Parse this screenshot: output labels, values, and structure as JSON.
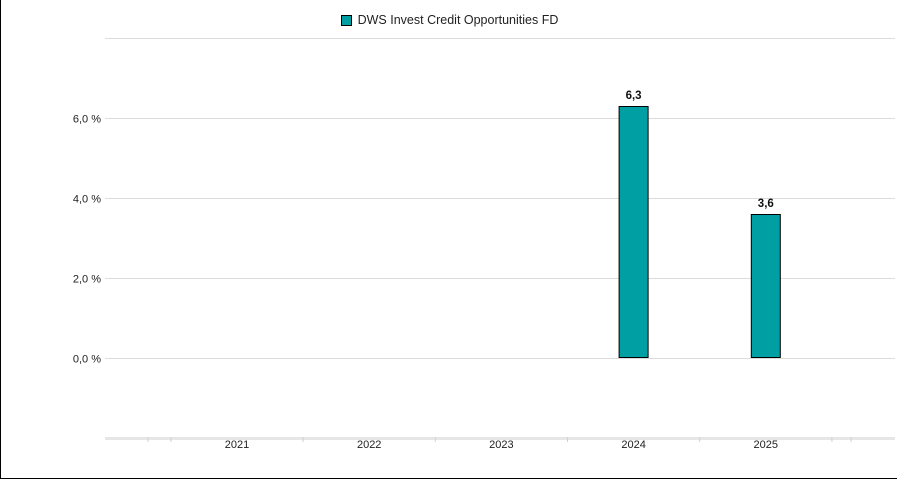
{
  "chart_data": {
    "type": "bar",
    "categories": [
      "2021",
      "2022",
      "2023",
      "2024",
      "2025"
    ],
    "series": [
      {
        "name": "DWS Invest Credit Opportunities FD",
        "values": [
          null,
          null,
          null,
          6.3,
          3.6
        ],
        "data_labels": [
          "",
          "",
          "",
          "6,3",
          "3,6"
        ]
      }
    ],
    "yticks": [
      0,
      2,
      4,
      6
    ],
    "ytick_labels": [
      "0,0 %",
      "2,0 %",
      "4,0 %",
      "6,0 %"
    ],
    "ylim": [
      -2,
      8
    ],
    "grid": true,
    "legend_position": "top",
    "colors": {
      "bar": "#009fa3",
      "bar_border": "#000000",
      "grid": "#dcdcdc"
    }
  }
}
